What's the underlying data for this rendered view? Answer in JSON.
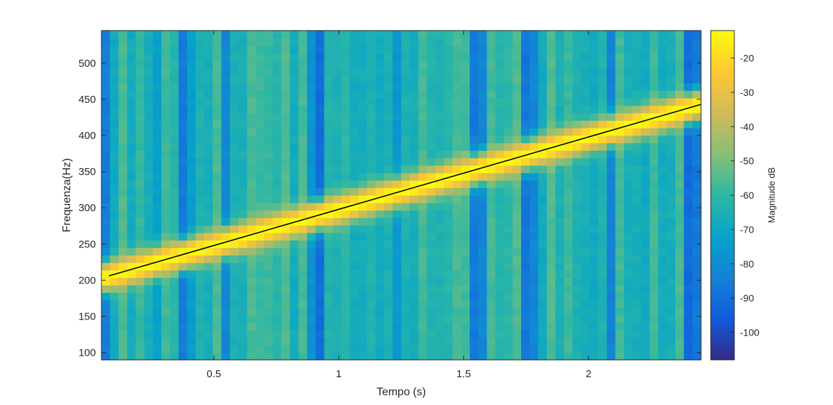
{
  "chart_data": {
    "type": "heatmap",
    "title": "",
    "xlabel": "Tempo (s)",
    "ylabel": "Frequenza(Hz)",
    "xlim": [
      0.05,
      2.45
    ],
    "ylim": [
      90,
      545
    ],
    "x_ticks": [
      0.5,
      1,
      1.5,
      2
    ],
    "x_tick_labels": [
      "0.5",
      "1",
      "1.5",
      "2"
    ],
    "y_ticks": [
      100,
      150,
      200,
      250,
      300,
      350,
      400,
      450,
      500
    ],
    "y_tick_labels": [
      "100",
      "150",
      "200",
      "250",
      "300",
      "350",
      "400",
      "450",
      "500"
    ],
    "time_bins": {
      "start": 0.05,
      "end": 2.45,
      "count": 70
    },
    "frequency_bins": {
      "start": 90,
      "end": 545,
      "count": 44
    },
    "ridge_line": {
      "x": [
        0.08,
        2.45
      ],
      "y": [
        206,
        443
      ],
      "color": "#000000"
    },
    "ridge_peak_db": -12,
    "background_db": -62,
    "dark_columns_s": [
      0.05,
      0.27,
      0.38,
      0.55,
      0.9,
      1.23,
      1.55,
      1.77,
      2.09,
      2.42
    ],
    "colorbar": {
      "label": "Magnitude dB",
      "range": [
        -108,
        -12
      ],
      "ticks": [
        -20,
        -30,
        -40,
        -50,
        -60,
        -70,
        -80,
        -90,
        -100
      ],
      "tick_labels": [
        "-20",
        "-30",
        "-40",
        "-50",
        "-60",
        "-70",
        "-80",
        "-90",
        "-100"
      ],
      "colormap": "parula",
      "colors": [
        "#352a87",
        "#0f5cdd",
        "#1481d6",
        "#06a4ca",
        "#2eb7a4",
        "#87bf77",
        "#d1bb59",
        "#fec832",
        "#f9fb0e"
      ]
    }
  }
}
